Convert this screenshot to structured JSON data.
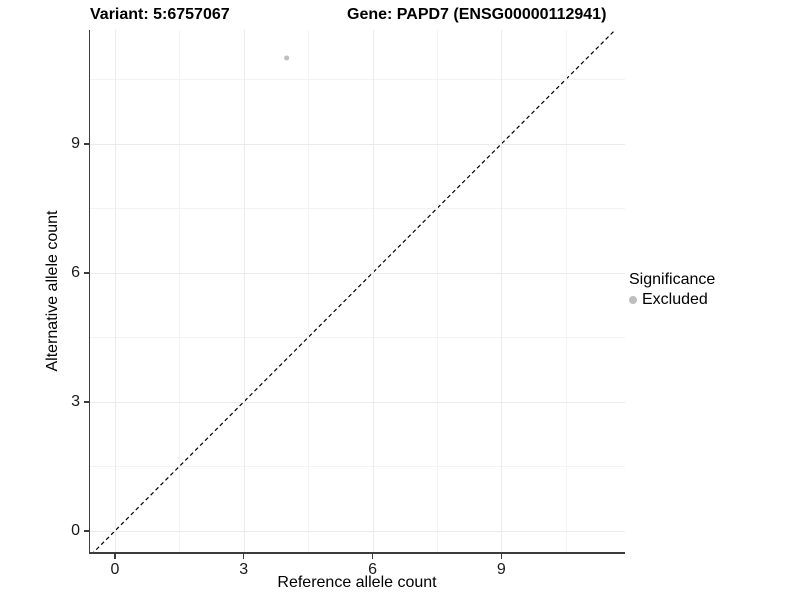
{
  "header": {
    "variant_title": "Variant: 5:6757067",
    "gene_title": "Gene: PAPD7 (ENSG00000112941)"
  },
  "chart_data": {
    "type": "scatter",
    "xlabel": "Reference allele count",
    "ylabel": "Alternative allele count",
    "xlim": [
      -0.58,
      11.88
    ],
    "ylim": [
      -0.49,
      11.65
    ],
    "x_ticks": [
      0,
      3,
      6,
      9
    ],
    "y_ticks": [
      0,
      3,
      6,
      9
    ],
    "x_minor_ticks": [
      1.5,
      4.5,
      7.5,
      10.5
    ],
    "y_minor_ticks": [
      1.5,
      4.5,
      7.5,
      10.5
    ],
    "grid": true,
    "identity_line": {
      "style": "dashed",
      "from": [
        -0.55,
        -0.55
      ],
      "to": [
        11.7,
        11.7
      ],
      "color": "#000000"
    },
    "series": [
      {
        "name": "Excluded",
        "color": "#bebebe",
        "point_radius": 2.5,
        "points": [
          {
            "x": 4,
            "y": 11
          }
        ]
      }
    ],
    "legend": {
      "title": "Significance",
      "position": "right",
      "items": [
        {
          "label": "Excluded",
          "color": "#bebebe"
        }
      ]
    }
  },
  "colors": {
    "background": "#ffffff",
    "axis_line": "#3c3c3c",
    "grid_major": "#ebebeb",
    "grid_minor": "#f3f3f3",
    "text": "#000000"
  }
}
